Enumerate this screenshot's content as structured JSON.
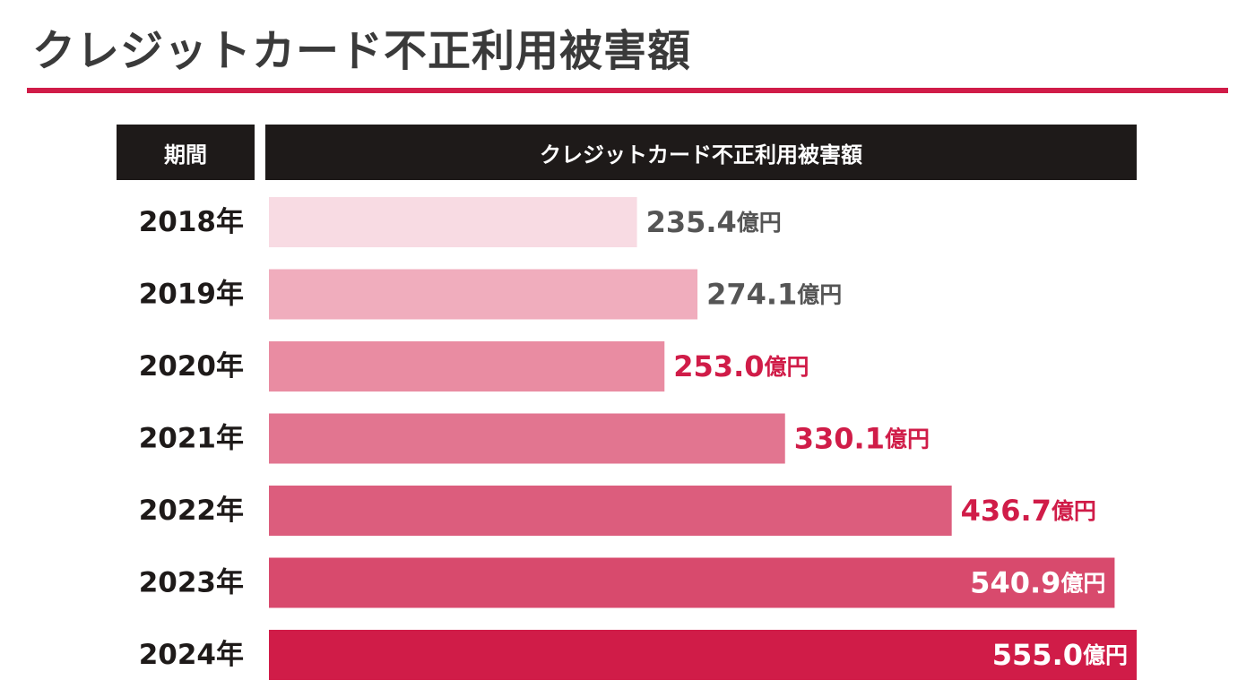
{
  "title": "クレジットカード不正利用被害額",
  "header": {
    "period_label": "期間",
    "value_label": "クレジットカード不正利用被害額"
  },
  "colors": {
    "accent": "#d01c48",
    "header_bg": "#1e1a19",
    "label_gray": "#555555",
    "label_red": "#d01c48"
  },
  "chart_data": {
    "type": "bar",
    "orientation": "horizontal",
    "unit": "億円",
    "categories": [
      "2018年",
      "2019年",
      "2020年",
      "2021年",
      "2022年",
      "2023年",
      "2024年"
    ],
    "values": [
      235.4,
      274.1,
      253.0,
      330.1,
      436.7,
      540.9,
      555.0
    ],
    "value_labels": [
      "235.4",
      "274.1",
      "253.0",
      "330.1",
      "436.7",
      "540.9",
      "555.0"
    ],
    "bar_colors": [
      "#f8dbe3",
      "#f0adbd",
      "#e98ca2",
      "#e27590",
      "#dc5d7d",
      "#d84a6d",
      "#d01c48"
    ],
    "label_colors": [
      "#555555",
      "#555555",
      "#d01c48",
      "#d01c48",
      "#d01c48",
      "#ffffff",
      "#ffffff"
    ],
    "label_inside": [
      false,
      false,
      false,
      false,
      false,
      true,
      true
    ],
    "xlim": [
      0,
      555.0
    ]
  }
}
